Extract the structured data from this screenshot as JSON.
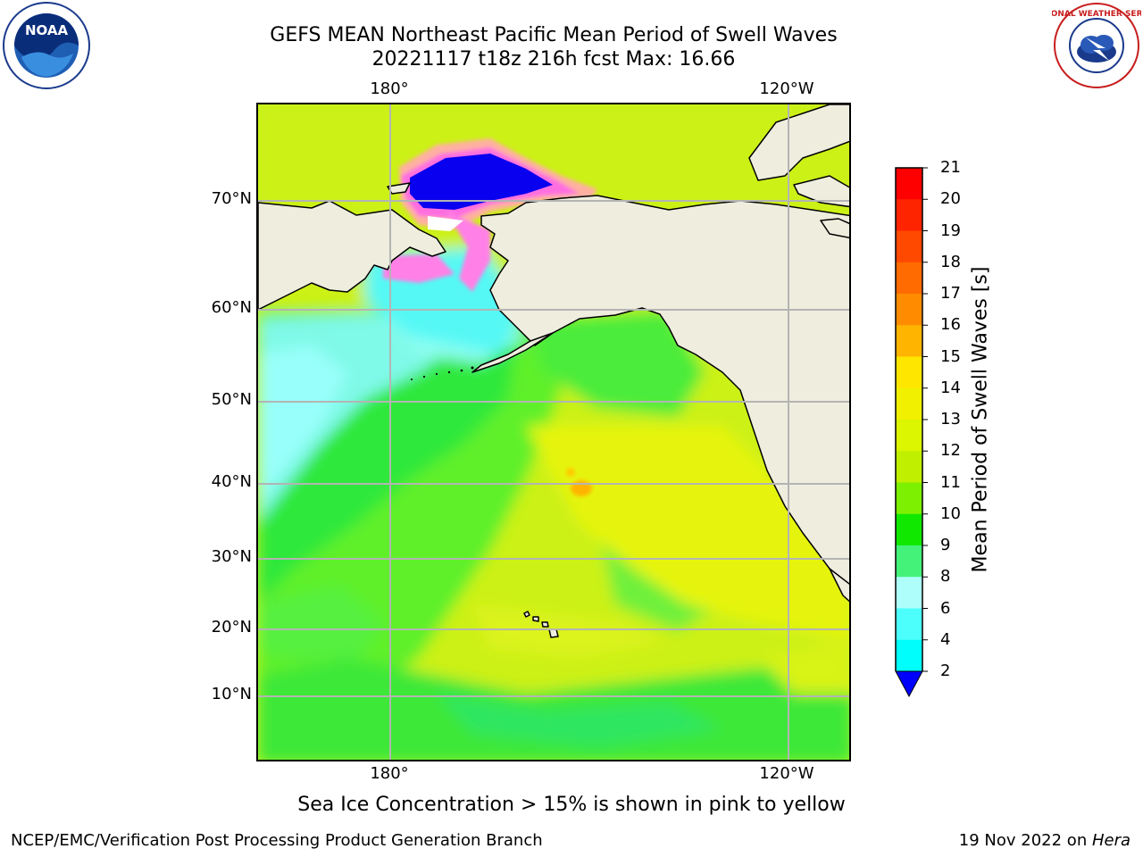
{
  "title": {
    "line1": "GEFS MEAN Northeast Pacific Mean Period of Swell Waves",
    "line2": "20221117 t18z 216h fcst   Max: 16.66"
  },
  "logos": {
    "left": {
      "icon": "noaa-logo-icon",
      "text": "NOAA"
    },
    "right": {
      "icon": "nws-logo-icon",
      "text": "NATIONAL WEATHER SERVICE"
    }
  },
  "map": {
    "lon_ticks_top": [
      "180°",
      "120°W"
    ],
    "lon_ticks_bottom": [
      "180°",
      "120°W"
    ],
    "lat_ticks": [
      "70°N",
      "60°N",
      "50°N",
      "40°N",
      "30°N",
      "20°N",
      "10°N"
    ],
    "land_color": "#efedde",
    "grid_color": "#b4b4b4"
  },
  "colorbar": {
    "title": "Mean Period of Swell Waves [s]",
    "ticks": [
      "21",
      "20",
      "19",
      "18",
      "17",
      "16",
      "15",
      "14",
      "13",
      "12",
      "11",
      "10",
      "9",
      "8",
      "6",
      "4",
      "2"
    ],
    "colors": [
      "#ff0000",
      "#ff2400",
      "#ff4800",
      "#ff6b00",
      "#ff8c00",
      "#ffb400",
      "#ffe600",
      "#f0f000",
      "#dcf500",
      "#c0f000",
      "#7cf000",
      "#11e800",
      "#44f27a",
      "#aefffc",
      "#4cfffc",
      "#00fffc",
      "#00d7ff",
      "#0077ff"
    ],
    "under_color": "#0000ff"
  },
  "caption": "Sea Ice Concentration > 15% is shown in pink to yellow",
  "footer": {
    "left": "NCEP/EMC/Verification Post Processing Product Generation Branch",
    "right_date": "19 Nov 2022 on ",
    "right_host": "Hera"
  }
}
